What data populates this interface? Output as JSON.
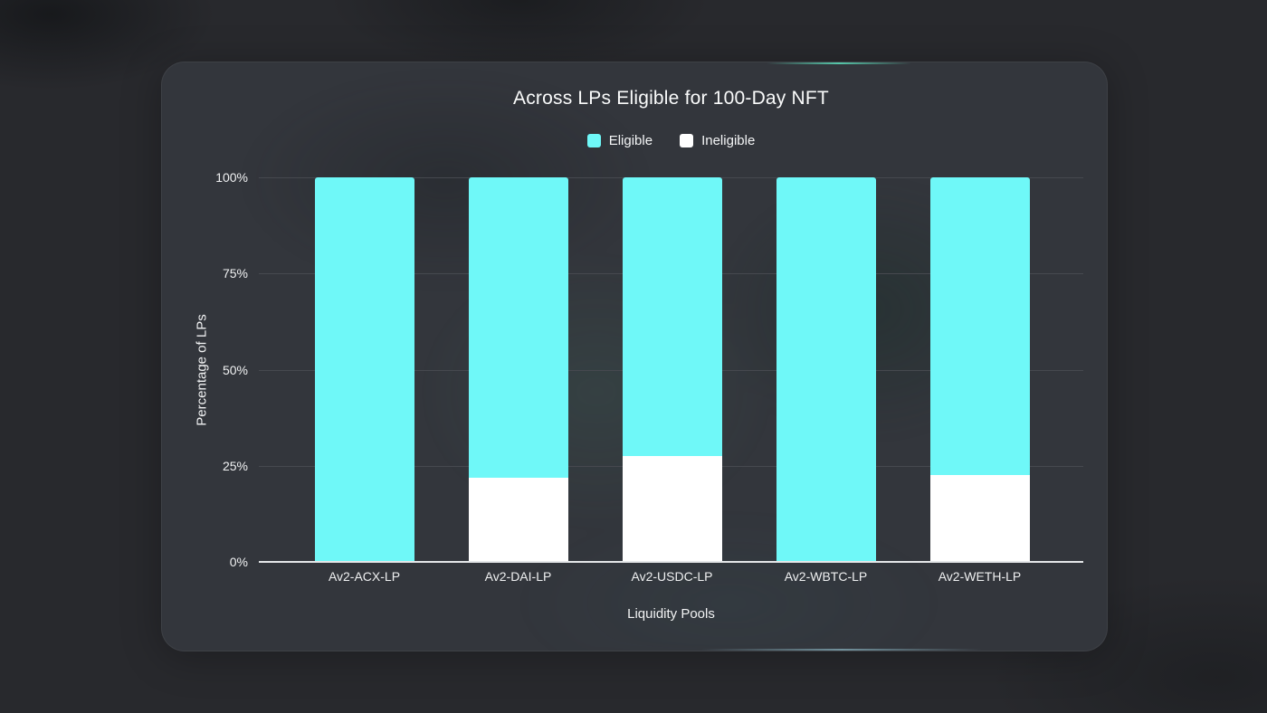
{
  "chart": {
    "title": "Across LPs Eligible for 100-Day NFT"
  },
  "chart_data": {
    "type": "bar",
    "stacked": true,
    "title": "Across LPs Eligible for 100-Day NFT",
    "xlabel": "Liquidity Pools",
    "ylabel": "Percentage of LPs",
    "categories": [
      "Av2-ACX-LP",
      "Av2-DAI-LP",
      "Av2-USDC-LP",
      "Av2-WBTC-LP",
      "Av2-WETH-LP"
    ],
    "series": [
      {
        "name": "Eligible",
        "color": "#6ff8f8",
        "values": [
          100,
          78,
          72.5,
          100,
          77.5
        ]
      },
      {
        "name": "Ineligible",
        "color": "#ffffff",
        "values": [
          0,
          22,
          27.5,
          0,
          22.5
        ]
      }
    ],
    "y_ticks": [
      "0%",
      "25%",
      "50%",
      "75%",
      "100%"
    ],
    "ylim": [
      0,
      100
    ],
    "y_unit": "%",
    "grid": true,
    "legend_position": "top",
    "axis_color": "#e5e7e9",
    "grid_color": "#46494f"
  }
}
